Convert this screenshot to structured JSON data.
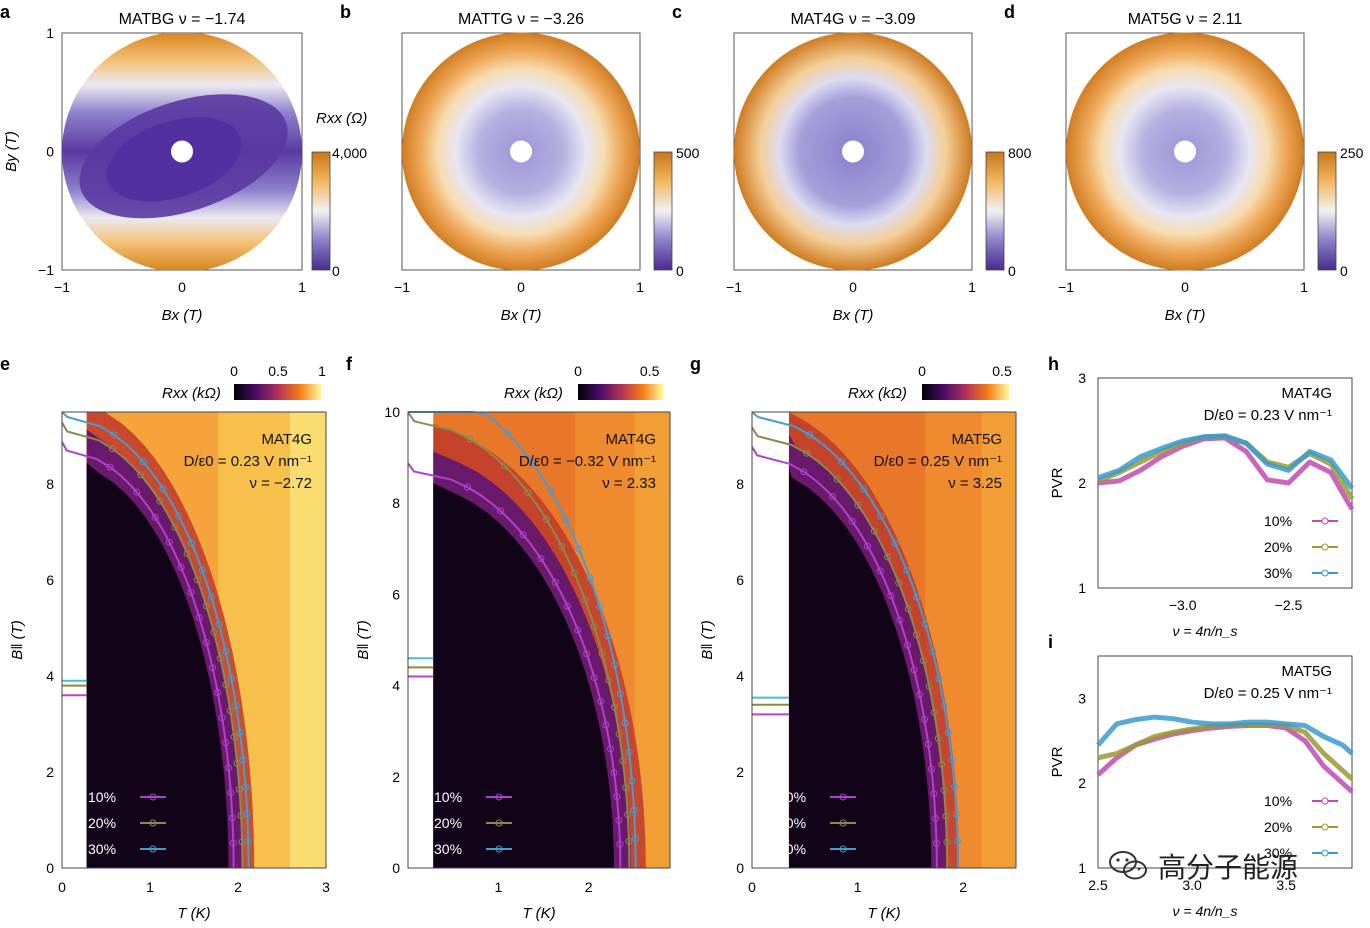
{
  "chart_data": [
    {
      "id": "a",
      "type": "heatmap",
      "panel_label": "a",
      "title": "MATBG ν = −1.74",
      "xlabel": "Bx (T)",
      "ylabel": "By (T)",
      "xticks": [
        "−1",
        "0",
        "1"
      ],
      "yticks": [
        "−1",
        "0",
        "1"
      ],
      "xlim": [
        -1,
        1
      ],
      "ylim": [
        -1,
        1
      ],
      "colorbar": {
        "label": "Rxx (Ω)",
        "ticks": [
          "4,000",
          "0"
        ],
        "range": [
          0,
          4000
        ]
      },
      "pattern": "anisotropic: low-resistance ellipse tilted along diagonal, high bands top and bottom"
    },
    {
      "id": "b",
      "type": "heatmap",
      "panel_label": "b",
      "title": "MATTG ν = −3.26",
      "xlabel": "Bx (T)",
      "ylabel": "",
      "xticks": [
        "−1",
        "0",
        "1"
      ],
      "yticks": [],
      "xlim": [
        -1,
        1
      ],
      "ylim": [
        -1,
        1
      ],
      "colorbar": {
        "label": "",
        "ticks": [
          "500",
          "0"
        ],
        "range": [
          0,
          500
        ]
      },
      "pattern": "isotropic ring"
    },
    {
      "id": "c",
      "type": "heatmap",
      "panel_label": "c",
      "title": "MAT4G ν = −3.09",
      "xlabel": "Bx (T)",
      "ylabel": "",
      "xticks": [
        "−1",
        "0",
        "1"
      ],
      "yticks": [],
      "xlim": [
        -1,
        1
      ],
      "ylim": [
        -1,
        1
      ],
      "colorbar": {
        "label": "",
        "ticks": [
          "800",
          "0"
        ],
        "range": [
          0,
          800
        ]
      },
      "pattern": "isotropic ring"
    },
    {
      "id": "d",
      "type": "heatmap",
      "panel_label": "d",
      "title": "MAT5G ν = 2.11",
      "xlabel": "Bx (T)",
      "ylabel": "",
      "xticks": [
        "−1",
        "0",
        "1"
      ],
      "yticks": [],
      "xlim": [
        -1,
        1
      ],
      "ylim": [
        -1,
        1
      ],
      "colorbar": {
        "label": "",
        "ticks": [
          "250",
          "0"
        ],
        "range": [
          0,
          250
        ]
      },
      "pattern": "isotropic ring"
    },
    {
      "id": "e",
      "type": "heatmap",
      "panel_label": "e",
      "xlabel": "T (K)",
      "ylabel": "B‖ (T)",
      "xlim": [
        0,
        3
      ],
      "ylim": [
        0,
        9.5
      ],
      "xticks": [
        "0",
        "1",
        "2",
        "3"
      ],
      "yticks": [
        "0",
        "2",
        "4",
        "6",
        "8"
      ],
      "colorbar": {
        "label": "Rxx (kΩ)",
        "ticks": [
          "0",
          "0.5",
          "1"
        ],
        "range": [
          0,
          1
        ]
      },
      "annotation": [
        "MAT4G",
        "D/ε0 = 0.23  V nm⁻¹",
        "ν = −2.72"
      ],
      "legend": [
        "10%",
        "20%",
        "30%"
      ],
      "series_colors": [
        "#b040d0",
        "#8a8a50",
        "#4a9ad0"
      ],
      "series": [
        {
          "name": "10%",
          "Tc0": 1.95,
          "Bc0": 8.7
        },
        {
          "name": "20%",
          "Tc0": 2.05,
          "Bc0": 9.1
        },
        {
          "name": "30%",
          "Tc0": 2.12,
          "Bc0": 9.4
        }
      ],
      "pauli_limit_marks": [
        3.6,
        3.8,
        3.9
      ],
      "data_start_T": 0.28
    },
    {
      "id": "f",
      "type": "heatmap",
      "panel_label": "f",
      "xlabel": "T (K)",
      "ylabel": "B‖ (T)",
      "xlim": [
        0,
        2.9
      ],
      "ylim": [
        0,
        10
      ],
      "xticks": [
        "1",
        "2"
      ],
      "yticks": [
        "0",
        "2",
        "4",
        "6",
        "8",
        "10"
      ],
      "colorbar": {
        "label": "Rxx (kΩ)",
        "ticks": [
          "0",
          "0.5"
        ],
        "range": [
          0,
          0.6
        ]
      },
      "annotation": [
        "MAT4G",
        "D/ε0 = −0.32  V nm⁻¹",
        "ν = 2.33"
      ],
      "legend": [
        "10%",
        "20%",
        "30%"
      ],
      "series_colors": [
        "#b040d0",
        "#8a8a50",
        "#4a9ad0"
      ],
      "series": [
        {
          "name": "10%",
          "Tc0": 2.35,
          "Bc0": 8.7
        },
        {
          "name": "20%",
          "Tc0": 2.45,
          "Bc0": 9.8
        },
        {
          "name": "30%",
          "Tc0": 2.52,
          "Bc0": 10.6
        }
      ],
      "pauli_limit_marks": [
        4.2,
        4.4,
        4.6
      ],
      "data_start_T": 0.28
    },
    {
      "id": "g",
      "type": "heatmap",
      "panel_label": "g",
      "xlabel": "T (K)",
      "ylabel": "B‖ (T)",
      "xlim": [
        0,
        2.5
      ],
      "ylim": [
        0,
        9.5
      ],
      "xticks": [
        "0",
        "1",
        "2"
      ],
      "yticks": [
        "0",
        "2",
        "4",
        "6",
        "8"
      ],
      "colorbar": {
        "label": "Rxx (kΩ)",
        "ticks": [
          "0",
          "0.5"
        ],
        "range": [
          0,
          0.55
        ]
      },
      "annotation": [
        "MAT5G",
        "D/ε0 = 0.25  V nm⁻¹",
        "ν = 3.25"
      ],
      "legend": [
        "10%",
        "20%",
        "30%"
      ],
      "series_colors": [
        "#b040d0",
        "#8a8a50",
        "#4a9ad0"
      ],
      "series": [
        {
          "name": "10%",
          "Tc0": 1.75,
          "Bc0": 8.6
        },
        {
          "name": "20%",
          "Tc0": 1.85,
          "Bc0": 9.0
        },
        {
          "name": "30%",
          "Tc0": 1.95,
          "Bc0": 9.4
        }
      ],
      "pauli_limit_marks": [
        3.2,
        3.4,
        3.55
      ],
      "data_start_T": 0.35
    },
    {
      "id": "h",
      "type": "line",
      "panel_label": "h",
      "xlabel": "ν = 4n/n_s",
      "ylabel": "PVR",
      "xlim": [
        -3.4,
        -2.2
      ],
      "ylim": [
        1,
        3
      ],
      "xticks": [
        "−3.0",
        "−2.5"
      ],
      "yticks": [
        "1",
        "2",
        "3"
      ],
      "annotation": [
        "MAT4G",
        "D/ε0 = 0.23  V nm⁻¹"
      ],
      "legend": [
        "10%",
        "20%",
        "30%"
      ],
      "series": [
        {
          "name": "10%",
          "color": "#c04ab0",
          "x": [
            -3.4,
            -3.3,
            -3.2,
            -3.1,
            -3.0,
            -2.9,
            -2.8,
            -2.7,
            -2.6,
            -2.5,
            -2.4,
            -2.3,
            -2.2
          ],
          "y": [
            2.0,
            2.02,
            2.12,
            2.25,
            2.35,
            2.42,
            2.43,
            2.3,
            2.03,
            2.0,
            2.2,
            2.1,
            1.75
          ]
        },
        {
          "name": "20%",
          "color": "#9a9a30",
          "x": [
            -3.4,
            -3.3,
            -3.2,
            -3.1,
            -3.0,
            -2.9,
            -2.8,
            -2.7,
            -2.6,
            -2.5,
            -2.4,
            -2.3,
            -2.2
          ],
          "y": [
            2.02,
            2.1,
            2.2,
            2.3,
            2.38,
            2.44,
            2.44,
            2.38,
            2.2,
            2.15,
            2.28,
            2.18,
            1.85
          ]
        },
        {
          "name": "30%",
          "color": "#3a9ad0",
          "x": [
            -3.4,
            -3.3,
            -3.2,
            -3.1,
            -3.0,
            -2.9,
            -2.8,
            -2.7,
            -2.6,
            -2.5,
            -2.4,
            -2.3,
            -2.2
          ],
          "y": [
            2.05,
            2.12,
            2.25,
            2.33,
            2.4,
            2.44,
            2.45,
            2.38,
            2.18,
            2.12,
            2.3,
            2.22,
            1.95
          ]
        }
      ]
    },
    {
      "id": "i",
      "type": "line",
      "panel_label": "i",
      "xlabel": "ν = 4n/n_s",
      "ylabel": "PVR",
      "xlim": [
        2.5,
        3.85
      ],
      "ylim": [
        1,
        3.5
      ],
      "xticks": [
        "2.5",
        "3.0",
        "3.5"
      ],
      "yticks": [
        "1",
        "2",
        "3"
      ],
      "annotation": [
        "MAT5G",
        "D/ε0 = 0.25  V nm⁻¹"
      ],
      "legend": [
        "10%",
        "20%",
        "30%"
      ],
      "series": [
        {
          "name": "10%",
          "color": "#c04ab0",
          "x": [
            2.5,
            2.6,
            2.7,
            2.8,
            2.9,
            3.0,
            3.1,
            3.2,
            3.3,
            3.4,
            3.5,
            3.6,
            3.7,
            3.8,
            3.85
          ],
          "y": [
            2.1,
            2.3,
            2.45,
            2.52,
            2.58,
            2.62,
            2.65,
            2.67,
            2.68,
            2.68,
            2.65,
            2.5,
            2.2,
            2.0,
            1.9
          ]
        },
        {
          "name": "20%",
          "color": "#9a9a30",
          "x": [
            2.5,
            2.6,
            2.7,
            2.8,
            2.9,
            3.0,
            3.1,
            3.2,
            3.3,
            3.4,
            3.5,
            3.6,
            3.7,
            3.8,
            3.85
          ],
          "y": [
            2.3,
            2.35,
            2.45,
            2.55,
            2.6,
            2.64,
            2.67,
            2.68,
            2.69,
            2.69,
            2.68,
            2.6,
            2.35,
            2.15,
            2.05
          ]
        },
        {
          "name": "30%",
          "color": "#3a9ad0",
          "x": [
            2.5,
            2.6,
            2.7,
            2.8,
            2.9,
            3.0,
            3.1,
            3.2,
            3.3,
            3.4,
            3.5,
            3.6,
            3.7,
            3.8,
            3.85
          ],
          "y": [
            2.45,
            2.7,
            2.75,
            2.78,
            2.76,
            2.72,
            2.7,
            2.7,
            2.72,
            2.72,
            2.7,
            2.68,
            2.55,
            2.45,
            2.35
          ]
        }
      ]
    }
  ],
  "watermark": {
    "text": "高分子能源",
    "icon": "wechat-icon"
  }
}
